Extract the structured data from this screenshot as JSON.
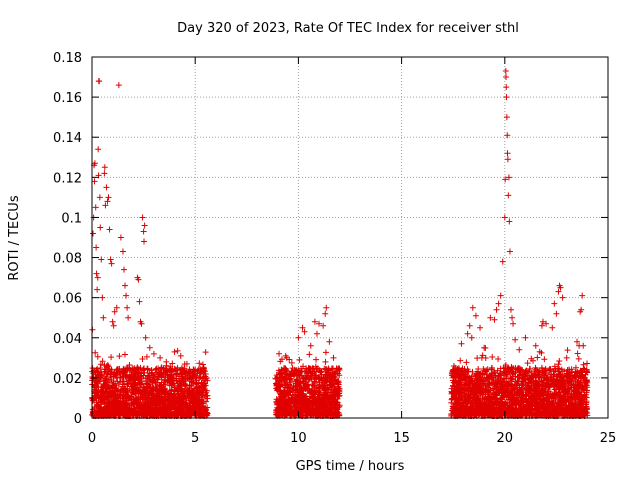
{
  "chart_data": {
    "type": "scatter",
    "title": "Day 320 of 2023, Rate Of TEC Index for receiver sthl",
    "xlabel": "GPS time / hours",
    "ylabel": "ROTI / TECUs",
    "xlim": [
      0,
      25
    ],
    "ylim": [
      0,
      0.18
    ],
    "xticks": [
      0,
      5,
      10,
      15,
      20,
      25
    ],
    "xtick_labels": [
      "0",
      "5",
      "10",
      "15",
      "20",
      "25"
    ],
    "yticks": [
      0,
      0.02,
      0.04,
      0.06,
      0.08,
      0.1,
      0.12,
      0.14,
      0.16,
      0.18
    ],
    "ytick_labels": [
      "0",
      "0.02",
      "0.04",
      "0.06",
      "0.08",
      "0.1",
      "0.12",
      "0.14",
      "0.16",
      "0.18"
    ],
    "grid": true,
    "marker": "+",
    "color": "#e00000",
    "observation_windows_hours": [
      [
        0,
        5.6
      ],
      [
        8.9,
        12.0
      ],
      [
        17.4,
        24.0
      ]
    ],
    "points": [
      [
        0.02,
        0.044
      ],
      [
        0.05,
        0.092
      ],
      [
        0.08,
        0.1
      ],
      [
        0.1,
        0.126
      ],
      [
        0.12,
        0.118
      ],
      [
        0.14,
        0.127
      ],
      [
        0.18,
        0.105
      ],
      [
        0.2,
        0.085
      ],
      [
        0.22,
        0.072
      ],
      [
        0.25,
        0.064
      ],
      [
        0.28,
        0.07
      ],
      [
        0.3,
        0.134
      ],
      [
        0.32,
        0.121
      ],
      [
        0.33,
        0.168
      ],
      [
        0.35,
        0.168
      ],
      [
        0.38,
        0.11
      ],
      [
        0.4,
        0.095
      ],
      [
        0.45,
        0.079
      ],
      [
        0.5,
        0.06
      ],
      [
        0.55,
        0.05
      ],
      [
        0.6,
        0.122
      ],
      [
        0.62,
        0.125
      ],
      [
        0.65,
        0.106
      ],
      [
        0.7,
        0.115
      ],
      [
        0.75,
        0.108
      ],
      [
        0.8,
        0.11
      ],
      [
        0.85,
        0.094
      ],
      [
        0.9,
        0.079
      ],
      [
        0.95,
        0.077
      ],
      [
        1.0,
        0.048
      ],
      [
        1.05,
        0.046
      ],
      [
        1.1,
        0.053
      ],
      [
        1.2,
        0.055
      ],
      [
        1.3,
        0.166
      ],
      [
        1.4,
        0.09
      ],
      [
        1.5,
        0.083
      ],
      [
        1.55,
        0.074
      ],
      [
        1.6,
        0.066
      ],
      [
        1.65,
        0.061
      ],
      [
        1.7,
        0.055
      ],
      [
        1.75,
        0.05
      ],
      [
        2.2,
        0.07
      ],
      [
        2.25,
        0.069
      ],
      [
        2.3,
        0.058
      ],
      [
        2.35,
        0.048
      ],
      [
        2.4,
        0.047
      ],
      [
        2.45,
        0.1
      ],
      [
        2.5,
        0.093
      ],
      [
        2.52,
        0.088
      ],
      [
        2.55,
        0.096
      ],
      [
        2.6,
        0.04
      ],
      [
        2.8,
        0.035
      ],
      [
        3.0,
        0.032
      ],
      [
        3.3,
        0.03
      ],
      [
        3.6,
        0.028
      ],
      [
        4.0,
        0.033
      ],
      [
        4.3,
        0.031
      ],
      [
        4.6,
        0.027
      ],
      [
        5.0,
        0.024
      ],
      [
        5.4,
        0.022
      ],
      [
        10.0,
        0.04
      ],
      [
        10.2,
        0.045
      ],
      [
        10.3,
        0.043
      ],
      [
        10.6,
        0.036
      ],
      [
        10.8,
        0.048
      ],
      [
        10.9,
        0.042
      ],
      [
        11.0,
        0.047
      ],
      [
        11.3,
        0.052
      ],
      [
        11.35,
        0.055
      ],
      [
        11.2,
        0.046
      ],
      [
        11.5,
        0.038
      ],
      [
        11.7,
        0.03
      ],
      [
        17.6,
        0.025
      ],
      [
        17.9,
        0.037
      ],
      [
        18.2,
        0.042
      ],
      [
        18.3,
        0.046
      ],
      [
        18.4,
        0.04
      ],
      [
        18.45,
        0.055
      ],
      [
        18.6,
        0.051
      ],
      [
        18.8,
        0.045
      ],
      [
        19.0,
        0.035
      ],
      [
        19.3,
        0.05
      ],
      [
        19.5,
        0.049
      ],
      [
        19.6,
        0.054
      ],
      [
        19.7,
        0.057
      ],
      [
        19.8,
        0.061
      ],
      [
        19.9,
        0.078
      ],
      [
        20.0,
        0.1
      ],
      [
        20.02,
        0.119
      ],
      [
        20.05,
        0.173
      ],
      [
        20.06,
        0.17
      ],
      [
        20.07,
        0.165
      ],
      [
        20.08,
        0.16
      ],
      [
        20.1,
        0.15
      ],
      [
        20.12,
        0.141
      ],
      [
        20.13,
        0.132
      ],
      [
        20.15,
        0.129
      ],
      [
        20.17,
        0.111
      ],
      [
        20.2,
        0.12
      ],
      [
        20.22,
        0.098
      ],
      [
        20.25,
        0.083
      ],
      [
        20.3,
        0.054
      ],
      [
        20.35,
        0.05
      ],
      [
        20.4,
        0.047
      ],
      [
        20.5,
        0.039
      ],
      [
        20.7,
        0.034
      ],
      [
        21.0,
        0.04
      ],
      [
        21.5,
        0.036
      ],
      [
        21.8,
        0.046
      ],
      [
        21.85,
        0.048
      ],
      [
        22.0,
        0.047
      ],
      [
        22.3,
        0.045
      ],
      [
        22.4,
        0.057
      ],
      [
        22.5,
        0.052
      ],
      [
        22.6,
        0.063
      ],
      [
        22.65,
        0.066
      ],
      [
        22.7,
        0.065
      ],
      [
        22.8,
        0.06
      ],
      [
        23.0,
        0.03
      ],
      [
        23.5,
        0.038
      ],
      [
        23.6,
        0.036
      ],
      [
        23.65,
        0.053
      ],
      [
        23.7,
        0.054
      ],
      [
        23.75,
        0.061
      ],
      [
        23.8,
        0.036
      ]
    ]
  }
}
